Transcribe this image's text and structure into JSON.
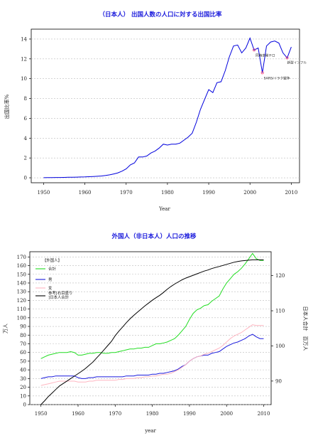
{
  "chart_data": [
    {
      "type": "line",
      "title": "（日本人） 出国人数の人口に対する出国比率",
      "xlabel": "Year",
      "ylabel": "出国比率%",
      "xlim": [
        1947,
        2012
      ],
      "ylim": [
        -0.5,
        15
      ],
      "xticks": [
        1950,
        1960,
        1970,
        1980,
        1990,
        2000,
        2010
      ],
      "yticks": [
        0,
        2,
        4,
        6,
        8,
        10,
        12,
        14
      ],
      "grid": true,
      "series": [
        {
          "color": "#0000dd",
          "x": [
            1950,
            1951,
            1952,
            1953,
            1954,
            1955,
            1956,
            1957,
            1958,
            1959,
            1960,
            1961,
            1962,
            1963,
            1964,
            1965,
            1966,
            1967,
            1968,
            1969,
            1970,
            1971,
            1972,
            1973,
            1974,
            1975,
            1976,
            1977,
            1978,
            1979,
            1980,
            1981,
            1982,
            1983,
            1984,
            1985,
            1986,
            1987,
            1988,
            1989,
            1990,
            1991,
            1992,
            1993,
            1994,
            1995,
            1996,
            1997,
            1998,
            1999,
            2000,
            2001,
            2002,
            2003,
            2004,
            2005,
            2006,
            2007,
            2008,
            2009,
            2010
          ],
          "y": [
            0.01,
            0.02,
            0.02,
            0.03,
            0.03,
            0.04,
            0.05,
            0.06,
            0.07,
            0.08,
            0.09,
            0.11,
            0.13,
            0.15,
            0.18,
            0.23,
            0.3,
            0.39,
            0.5,
            0.67,
            0.9,
            1.3,
            1.5,
            2.1,
            2.1,
            2.2,
            2.5,
            2.7,
            3.0,
            3.4,
            3.3,
            3.4,
            3.4,
            3.5,
            3.8,
            4.1,
            4.5,
            5.6,
            6.9,
            7.9,
            8.9,
            8.6,
            9.6,
            9.7,
            10.8,
            12.2,
            13.3,
            13.4,
            12.6,
            13.1,
            14.1,
            12.9,
            13.1,
            10.6,
            13.3,
            13.7,
            13.8,
            13.6,
            12.6,
            12.1,
            13.2
          ]
        }
      ],
      "annotations": [
        {
          "text": "同時多発テロ",
          "x": 2001,
          "y": 12.9
        },
        {
          "text": "SARS/イラク戦争",
          "x": 2003,
          "y": 10.6
        },
        {
          "text": "新型インフル",
          "x": 2009,
          "y": 12.1
        }
      ]
    },
    {
      "type": "line",
      "title": "外国人（非日本人）人口の推移",
      "xlabel": "year",
      "ylabel": "万人",
      "y2label": "日本人合計　百万人",
      "xlim": [
        1947,
        2012
      ],
      "ylim": [
        0,
        176
      ],
      "y2lim": [
        83.3,
        126.8
      ],
      "xticks": [
        1950,
        1960,
        1970,
        1980,
        1990,
        2000,
        2010
      ],
      "yticks": [
        0,
        10,
        20,
        30,
        40,
        50,
        60,
        70,
        80,
        90,
        100,
        110,
        120,
        130,
        140,
        150,
        160,
        170
      ],
      "y2ticks": [
        90,
        100,
        110,
        120
      ],
      "grid": true,
      "legend_title": "【外国人】",
      "legend_position": "top-left",
      "x": [
        1950,
        1951,
        1952,
        1953,
        1954,
        1955,
        1956,
        1957,
        1958,
        1959,
        1960,
        1961,
        1962,
        1963,
        1964,
        1965,
        1966,
        1967,
        1968,
        1969,
        1970,
        1971,
        1972,
        1973,
        1974,
        1975,
        1976,
        1977,
        1978,
        1979,
        1980,
        1981,
        1982,
        1983,
        1984,
        1985,
        1986,
        1987,
        1988,
        1989,
        1990,
        1991,
        1992,
        1993,
        1994,
        1995,
        1996,
        1997,
        1998,
        1999,
        2000,
        2001,
        2002,
        2003,
        2004,
        2005,
        2006,
        2007,
        2008,
        2009,
        2010
      ],
      "series": [
        {
          "name": "合計",
          "color": "#22dd22",
          "axis": "left",
          "y": [
            53,
            55,
            57,
            58,
            59,
            60,
            60,
            60,
            61,
            60,
            57,
            57,
            58,
            59,
            59,
            60,
            60,
            59,
            59,
            60,
            60,
            61,
            62,
            63,
            64,
            64,
            65,
            65,
            66,
            66,
            68,
            70,
            70,
            71,
            72,
            74,
            76,
            80,
            85,
            90,
            98,
            105,
            109,
            111,
            114,
            115,
            119,
            122,
            125,
            133,
            140,
            145,
            150,
            153,
            157,
            162,
            168,
            174,
            168,
            166,
            166
          ]
        },
        {
          "name": "男",
          "color": "#1a1add",
          "axis": "left",
          "y": [
            30,
            31,
            32,
            32,
            33,
            33,
            33,
            33,
            33,
            33,
            31,
            30,
            30,
            31,
            31,
            32,
            32,
            32,
            32,
            32,
            32,
            32,
            32,
            33,
            33,
            33,
            34,
            34,
            34,
            34,
            35,
            35,
            36,
            36,
            37,
            38,
            39,
            41,
            44,
            46,
            50,
            53,
            55,
            56,
            57,
            57,
            59,
            60,
            61,
            64,
            67,
            69,
            71,
            72,
            74,
            76,
            79,
            81,
            78,
            76,
            76
          ]
        },
        {
          "name": "女",
          "color": "#ffb6c1",
          "axis": "left",
          "y": [
            22,
            23,
            24,
            25,
            26,
            27,
            27,
            27,
            27,
            27,
            26,
            26,
            26,
            27,
            27,
            28,
            28,
            28,
            28,
            28,
            28,
            29,
            29,
            30,
            30,
            30,
            31,
            31,
            32,
            32,
            33,
            33,
            34,
            35,
            35,
            36,
            38,
            40,
            43,
            46,
            50,
            53,
            55,
            56,
            58,
            59,
            61,
            63,
            65,
            68,
            72,
            76,
            79,
            81,
            83,
            86,
            89,
            92,
            91,
            91,
            91
          ]
        },
        {
          "name": "参考[右目盛り]日本人合計",
          "color": "#000000",
          "axis": "right",
          "y": [
            83.3,
            84.4,
            85.6,
            86.6,
            87.6,
            88.6,
            89.3,
            90.0,
            90.7,
            91.4,
            92.1,
            92.8,
            93.6,
            94.5,
            95.4,
            96.6,
            97.7,
            98.9,
            100.1,
            101.3,
            102.9,
            104.2,
            105.4,
            106.6,
            107.7,
            108.7,
            109.6,
            110.5,
            111.4,
            112.2,
            113.0,
            113.7,
            114.4,
            115.2,
            116.1,
            116.9,
            117.6,
            118.2,
            118.8,
            119.3,
            119.7,
            120.1,
            120.5,
            120.9,
            121.3,
            121.6,
            122.0,
            122.3,
            122.6,
            122.9,
            123.2,
            123.5,
            123.8,
            124.0,
            124.2,
            124.3,
            124.4,
            124.5,
            124.5,
            124.5,
            124.5
          ]
        }
      ]
    }
  ]
}
